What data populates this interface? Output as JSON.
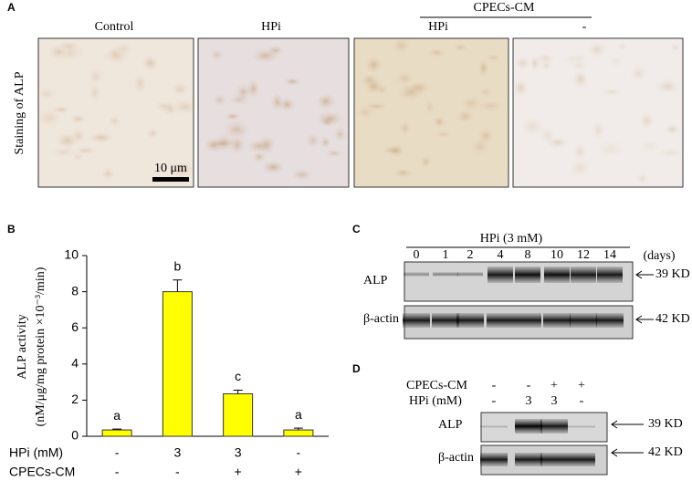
{
  "panel_a": {
    "label": "A",
    "columns": [
      "Control",
      "HPi",
      "HPi",
      "-"
    ],
    "group": "CPECs-CM",
    "ylabel": "Staining of ALP",
    "scale_bar": "10 μm"
  },
  "chart_data": {
    "type": "bar",
    "label": "B",
    "ylabel": "ALP activity",
    "ylabel_unit": "(nM/μg/mg protein ×10⁻³/min)",
    "values": [
      0.35,
      8.0,
      2.35,
      0.35
    ],
    "errors": [
      0.05,
      0.65,
      0.2,
      0.1
    ],
    "color": "#ffff00",
    "annotations": [
      "a",
      "b",
      "c",
      "a"
    ],
    "ylim": [
      0,
      10
    ],
    "yticks": [
      0,
      2,
      4,
      6,
      8,
      10
    ],
    "conditions": [
      {
        "label": "HPi (mM)",
        "values": [
          "-",
          "3",
          "3",
          "-"
        ]
      },
      {
        "label": "CPECs-CM",
        "values": [
          "-",
          "-",
          "+",
          "+"
        ]
      }
    ]
  },
  "panel_c": {
    "label": "C",
    "title": "HPi (3 mM)",
    "lanes": [
      "0",
      "1",
      "2",
      "4",
      "8",
      "10",
      "12",
      "14"
    ],
    "lane_unit": "(days)",
    "rows": [
      {
        "label": "ALP",
        "marker": "39 KD"
      },
      {
        "label": "β-actin",
        "marker": "42 KD"
      }
    ]
  },
  "panel_d": {
    "label": "D",
    "conditions": [
      {
        "label": "CPECs-CM",
        "values": [
          "-",
          "-",
          "+",
          "+"
        ]
      },
      {
        "label": "HPi (mM)",
        "values": [
          "-",
          "3",
          "3",
          "-"
        ]
      }
    ],
    "rows": [
      {
        "label": "ALP",
        "marker": "39 KD"
      },
      {
        "label": "β-actin",
        "marker": "42 KD"
      }
    ]
  }
}
